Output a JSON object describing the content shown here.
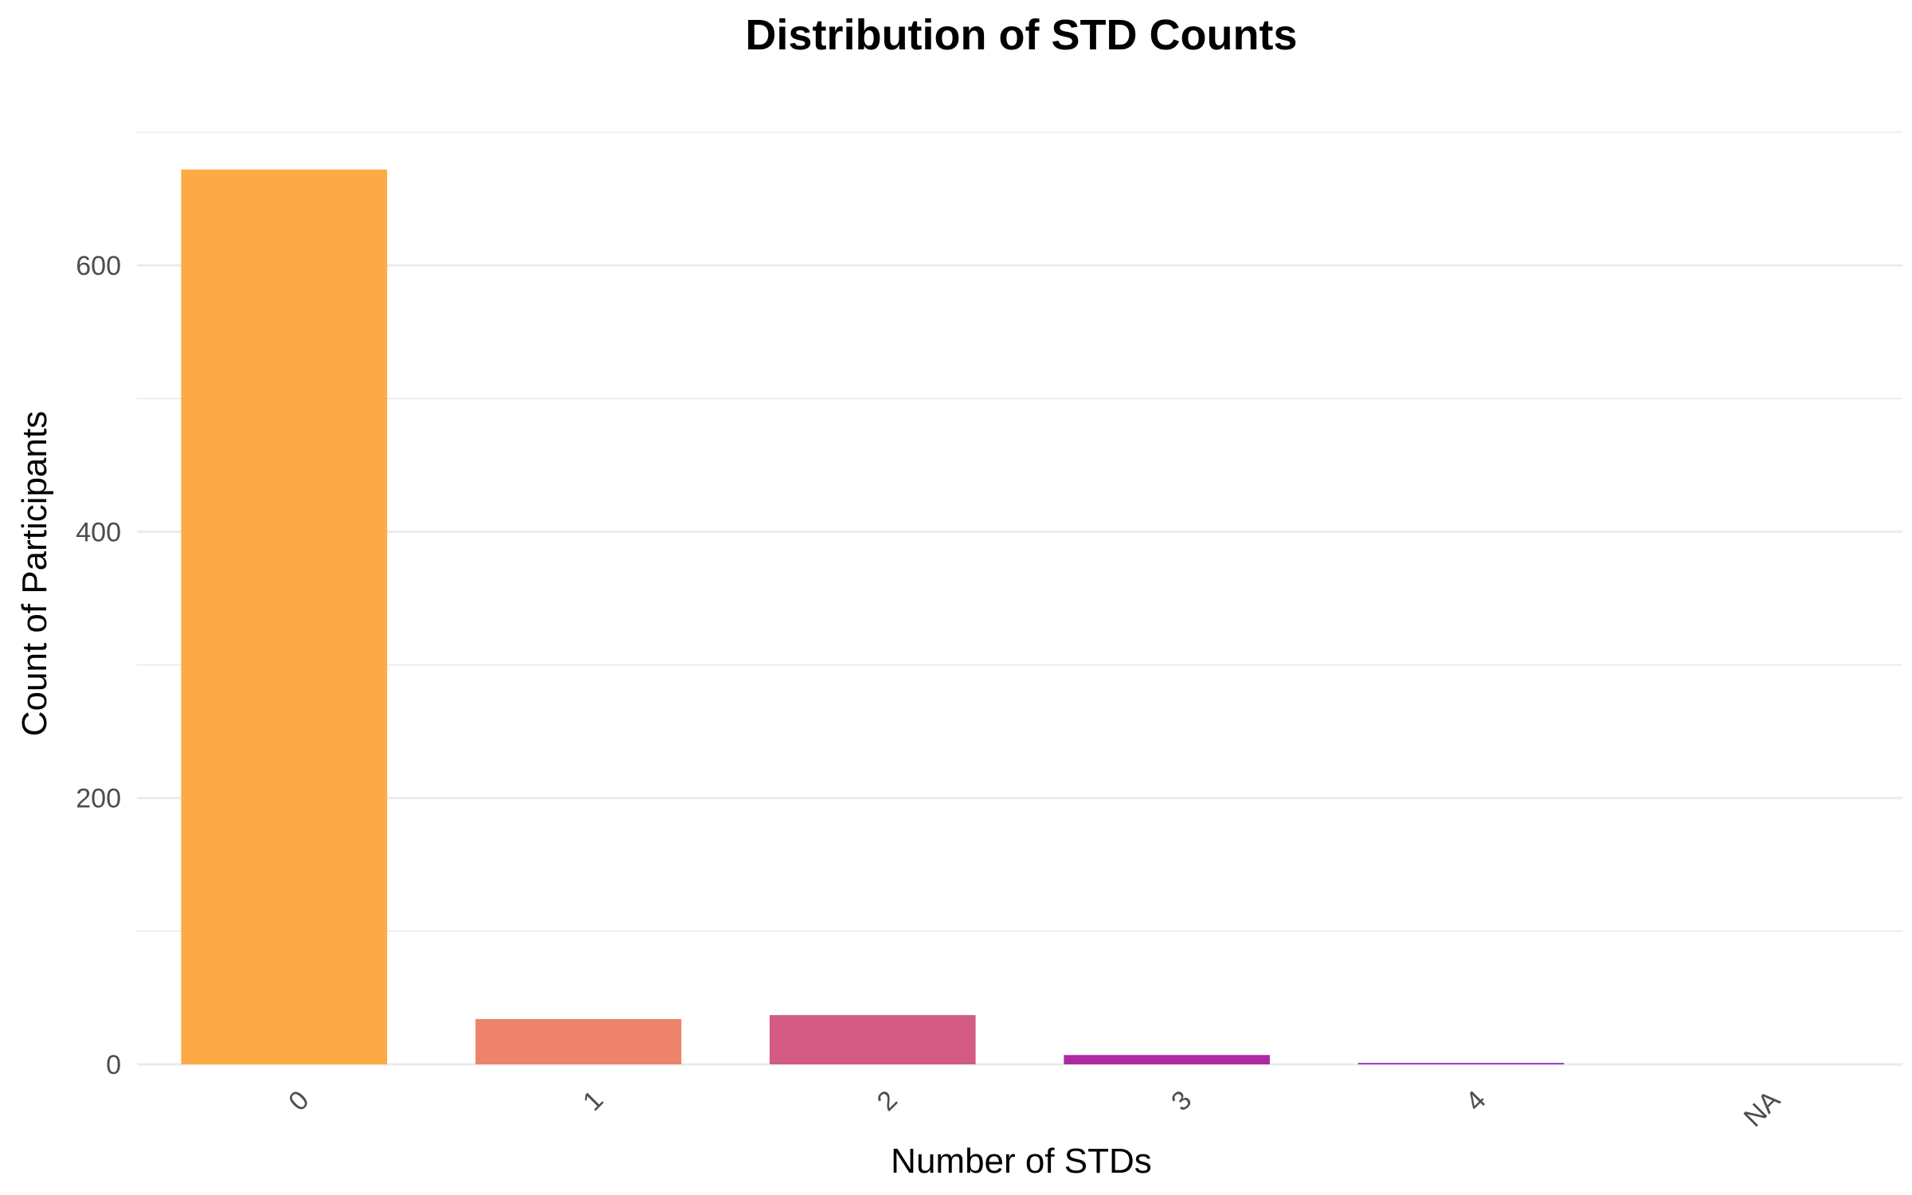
{
  "chart_data": {
    "type": "bar",
    "title": "Distribution of STD Counts",
    "xlabel": "Number of STDs",
    "ylabel": "Count of Participants",
    "categories": [
      "0",
      "1",
      "2",
      "3",
      "4",
      "NA"
    ],
    "values": [
      672,
      34,
      37,
      7,
      1,
      0
    ],
    "colors": [
      "#fcaa46",
      "#ec836a",
      "#d25a83",
      "#ad29a6",
      "#9018c6",
      "#7a0dd8"
    ],
    "ylim": [
      0,
      700
    ],
    "yticks": [
      0,
      200,
      400,
      600
    ],
    "y_minor_ticks": [
      100,
      300,
      500,
      700
    ],
    "grid": true,
    "x_tick_rotation_deg": -45,
    "legend": "none"
  }
}
